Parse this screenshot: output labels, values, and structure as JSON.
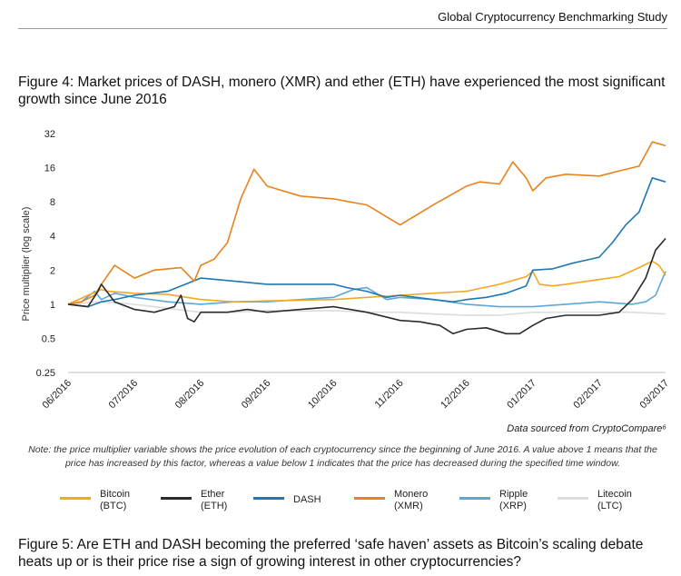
{
  "header": {
    "title": "Global Cryptocurrency Benchmarking Study"
  },
  "figure4": {
    "caption": "Figure 4: Market prices of DASH, monero (XMR) and ether (ETH) have experienced the most significant growth since June 2016"
  },
  "figure5": {
    "caption": "Figure 5: Are ETH and DASH becoming the preferred ‘safe haven’ assets as Bitcoin’s scaling debate heats up or is their price rise a sign of growing interest in other cryptocurrencies?"
  },
  "source": "Data sourced from CryptoCompare⁶",
  "note": "Note: the price multiplier variable shows the price evolution of each cryptocurrency since the beginning of June 2016. A value above 1 means that the price has increased by this factor, whereas a value below 1 indicates that the price has decreased during the specified time window.",
  "legend": [
    {
      "name": "Bitcoin",
      "ticker": "(BTC)"
    },
    {
      "name": "Ether",
      "ticker": "(ETH)"
    },
    {
      "name": "DASH",
      "ticker": ""
    },
    {
      "name": "Monero",
      "ticker": "(XMR)"
    },
    {
      "name": "Ripple",
      "ticker": "(XRP)"
    },
    {
      "name": "Litecoin",
      "ticker": "(LTC)"
    }
  ],
  "chart_data": {
    "type": "line",
    "title": "",
    "xlabel": "",
    "ylabel": "Price multiplier (log scale)",
    "y_scale": "log2",
    "ylim": [
      0.25,
      32
    ],
    "yticks": [
      32,
      16,
      8,
      4,
      2,
      1,
      0.5,
      0.25
    ],
    "ytick_labels": [
      "32",
      "16",
      "8",
      "4",
      "2",
      "1",
      "0.5",
      "0.25"
    ],
    "xticks": [
      "06/2016",
      "07/2016",
      "08/2016",
      "09/2016",
      "10/2016",
      "11/2016",
      "12/2016",
      "01/2017",
      "02/2017",
      "03/2017"
    ],
    "x_unit": "months since 06/2016",
    "xlim": [
      0,
      9
    ],
    "grid": false,
    "legend_position": "bottom",
    "series": [
      {
        "name": "Bitcoin (BTC)",
        "color": "#f5a623",
        "x": [
          0,
          0.3,
          0.5,
          0.6,
          1,
          1.5,
          2,
          2.5,
          3,
          4,
          5,
          5.5,
          6,
          6.5,
          6.9,
          7.0,
          7.1,
          7.3,
          7.5,
          8,
          8.3,
          8.6,
          8.8,
          8.9,
          9
        ],
        "y": [
          1,
          1.2,
          1.35,
          1.3,
          1.25,
          1.22,
          1.1,
          1.05,
          1.07,
          1.1,
          1.2,
          1.25,
          1.3,
          1.5,
          1.75,
          1.95,
          1.5,
          1.45,
          1.5,
          1.65,
          1.75,
          2.1,
          2.4,
          2.2,
          1.8
        ]
      },
      {
        "name": "Ether (ETH)",
        "color": "#2b2b2b",
        "x": [
          0,
          0.3,
          0.45,
          0.5,
          0.7,
          1,
          1.3,
          1.6,
          1.7,
          1.8,
          1.9,
          2,
          2.4,
          2.7,
          3,
          3.5,
          4,
          4.5,
          5,
          5.3,
          5.6,
          5.8,
          6,
          6.3,
          6.6,
          6.8,
          7,
          7.2,
          7.5,
          8,
          8.3,
          8.5,
          8.7,
          8.85,
          9
        ],
        "y": [
          1,
          0.95,
          1.3,
          1.5,
          1.05,
          0.9,
          0.85,
          0.95,
          1.2,
          0.75,
          0.7,
          0.85,
          0.85,
          0.9,
          0.85,
          0.9,
          0.95,
          0.85,
          0.72,
          0.7,
          0.65,
          0.55,
          0.6,
          0.62,
          0.55,
          0.55,
          0.65,
          0.75,
          0.8,
          0.8,
          0.85,
          1.1,
          1.7,
          3.0,
          3.8
        ]
      },
      {
        "name": "DASH",
        "color": "#1f77b4",
        "x": [
          0,
          0.3,
          0.5,
          0.7,
          1,
          1.5,
          2,
          2.5,
          3,
          3.5,
          4,
          4.2,
          4.5,
          4.8,
          5,
          5.5,
          5.8,
          6,
          6.3,
          6.6,
          6.9,
          7,
          7.3,
          7.6,
          8,
          8.2,
          8.4,
          8.6,
          8.8,
          9
        ],
        "y": [
          1,
          0.95,
          1.05,
          1.1,
          1.2,
          1.3,
          1.7,
          1.6,
          1.5,
          1.5,
          1.5,
          1.4,
          1.3,
          1.15,
          1.2,
          1.1,
          1.05,
          1.1,
          1.15,
          1.25,
          1.45,
          2.0,
          2.05,
          2.3,
          2.6,
          3.5,
          5.0,
          6.5,
          13.0,
          12.0
        ]
      },
      {
        "name": "Monero (XMR)",
        "color": "#e8821c",
        "x": [
          0,
          0.2,
          0.4,
          0.5,
          0.7,
          1,
          1.3,
          1.7,
          1.9,
          2,
          2.2,
          2.4,
          2.6,
          2.8,
          3,
          3.5,
          4,
          4.5,
          5,
          5.5,
          6,
          6.2,
          6.5,
          6.7,
          6.9,
          7,
          7.2,
          7.5,
          8,
          8.3,
          8.6,
          8.8,
          9
        ],
        "y": [
          1,
          1.05,
          1.2,
          1.5,
          2.2,
          1.7,
          2.0,
          2.1,
          1.6,
          2.2,
          2.5,
          3.5,
          8.5,
          15.5,
          11.0,
          9.0,
          8.5,
          7.5,
          5.0,
          7.5,
          11.0,
          12.0,
          11.5,
          18.0,
          13.0,
          10.0,
          13.0,
          14.0,
          13.5,
          15.0,
          16.5,
          27.0,
          25.0
        ]
      },
      {
        "name": "Ripple (XRP)",
        "color": "#5aa7d8",
        "x": [
          0,
          0.2,
          0.4,
          0.5,
          0.7,
          1,
          1.5,
          2,
          2.5,
          3,
          3.5,
          4,
          4.3,
          4.5,
          4.8,
          5,
          5.5,
          6,
          6.5,
          7,
          7.5,
          8,
          8.5,
          8.7,
          8.85,
          9
        ],
        "y": [
          1,
          1.05,
          1.3,
          1.1,
          1.25,
          1.15,
          1.05,
          1.0,
          1.05,
          1.05,
          1.1,
          1.15,
          1.35,
          1.4,
          1.1,
          1.15,
          1.1,
          1.0,
          0.95,
          0.95,
          1.0,
          1.05,
          1.0,
          1.05,
          1.2,
          1.95
        ]
      },
      {
        "name": "Litecoin (LTC)",
        "color": "#dcdcdc",
        "x": [
          0,
          0.5,
          1,
          1.5,
          2,
          2.5,
          3,
          3.5,
          4,
          4.5,
          5,
          5.5,
          6,
          6.5,
          7,
          7.5,
          8,
          8.5,
          9
        ],
        "y": [
          1,
          1.05,
          1.0,
          0.92,
          0.85,
          0.85,
          0.88,
          0.87,
          0.88,
          0.85,
          0.85,
          0.82,
          0.8,
          0.8,
          0.85,
          0.85,
          0.85,
          0.85,
          0.82
        ]
      }
    ]
  }
}
